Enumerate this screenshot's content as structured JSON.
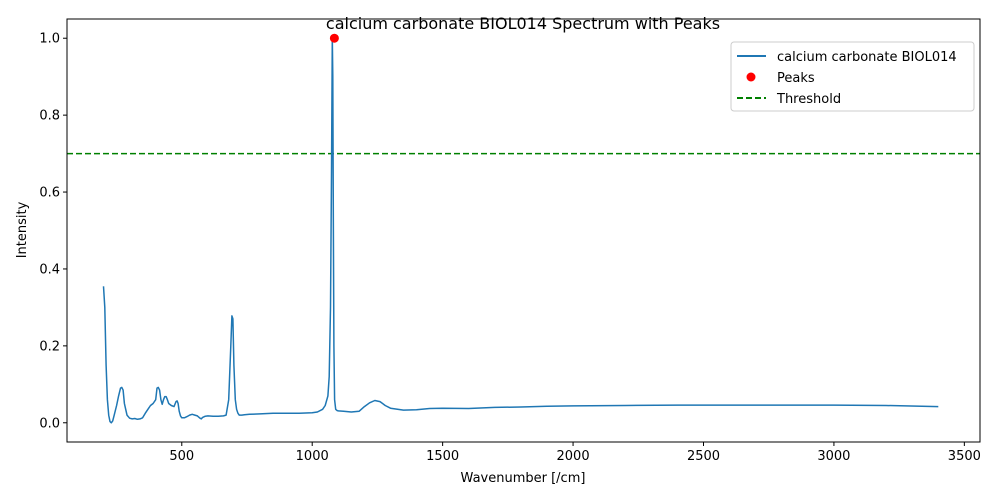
{
  "chart_data": {
    "type": "line",
    "title": "calcium carbonate BIOL014 Spectrum with Peaks",
    "xlabel": "Wavenumber [/cm]",
    "ylabel": "Intensity",
    "xlim": [
      60,
      3560
    ],
    "ylim": [
      -0.05,
      1.05
    ],
    "xticks": [
      500,
      1000,
      1500,
      2000,
      2500,
      3000,
      3500
    ],
    "yticks": [
      0.0,
      0.2,
      0.4,
      0.6,
      0.8,
      1.0
    ],
    "xtick_labels": [
      "500",
      "1000",
      "1500",
      "2000",
      "2500",
      "3000",
      "3500"
    ],
    "ytick_labels": [
      "0.0",
      "0.2",
      "0.4",
      "0.6",
      "0.8",
      "1.0"
    ],
    "legend_position": "top-right",
    "series": [
      {
        "name": "calcium carbonate BIOL014",
        "kind": "line",
        "color": "#1f77b4",
        "x": [
          200,
          205,
          210,
          215,
          220,
          225,
          230,
          235,
          240,
          250,
          258,
          265,
          270,
          275,
          280,
          285,
          290,
          300,
          310,
          320,
          330,
          340,
          350,
          360,
          370,
          380,
          390,
          400,
          405,
          410,
          415,
          420,
          425,
          430,
          435,
          440,
          445,
          450,
          460,
          470,
          478,
          482,
          486,
          490,
          495,
          500,
          510,
          520,
          530,
          540,
          550,
          560,
          570,
          575,
          580,
          590,
          600,
          620,
          640,
          660,
          670,
          680,
          688,
          692,
          696,
          700,
          705,
          710,
          715,
          720,
          725,
          730,
          740,
          760,
          800,
          850,
          900,
          950,
          1000,
          1020,
          1040,
          1050,
          1060,
          1065,
          1070,
          1074,
          1077,
          1079,
          1081,
          1083,
          1086,
          1090,
          1095,
          1100,
          1120,
          1150,
          1180,
          1200,
          1220,
          1240,
          1260,
          1280,
          1300,
          1350,
          1400,
          1450,
          1500,
          1600,
          1700,
          1800,
          1900,
          2000,
          2200,
          2400,
          2600,
          2800,
          3000,
          3200,
          3400
        ],
        "y": [
          0.355,
          0.3,
          0.15,
          0.06,
          0.02,
          0.003,
          0.0,
          0.005,
          0.018,
          0.045,
          0.07,
          0.09,
          0.092,
          0.085,
          0.05,
          0.035,
          0.02,
          0.012,
          0.01,
          0.011,
          0.009,
          0.01,
          0.013,
          0.025,
          0.035,
          0.045,
          0.05,
          0.06,
          0.09,
          0.092,
          0.085,
          0.06,
          0.048,
          0.06,
          0.068,
          0.068,
          0.06,
          0.05,
          0.045,
          0.042,
          0.055,
          0.057,
          0.05,
          0.03,
          0.018,
          0.013,
          0.013,
          0.016,
          0.02,
          0.022,
          0.02,
          0.018,
          0.012,
          0.01,
          0.014,
          0.017,
          0.018,
          0.017,
          0.017,
          0.018,
          0.02,
          0.06,
          0.2,
          0.278,
          0.27,
          0.15,
          0.06,
          0.035,
          0.025,
          0.02,
          0.02,
          0.02,
          0.021,
          0.022,
          0.023,
          0.025,
          0.025,
          0.025,
          0.026,
          0.028,
          0.035,
          0.045,
          0.07,
          0.12,
          0.3,
          0.65,
          1.0,
          0.9,
          0.55,
          0.2,
          0.06,
          0.035,
          0.032,
          0.031,
          0.03,
          0.028,
          0.03,
          0.042,
          0.052,
          0.058,
          0.055,
          0.045,
          0.038,
          0.033,
          0.034,
          0.037,
          0.038,
          0.037,
          0.04,
          0.041,
          0.043,
          0.044,
          0.045,
          0.046,
          0.046,
          0.046,
          0.046,
          0.045,
          0.042
        ]
      },
      {
        "name": "Peaks",
        "kind": "scatter",
        "color": "#ff0000",
        "x": [
          1085
        ],
        "y": [
          1.0
        ]
      },
      {
        "name": "Threshold",
        "kind": "hline",
        "color": "#008000",
        "y": 0.7
      }
    ]
  }
}
